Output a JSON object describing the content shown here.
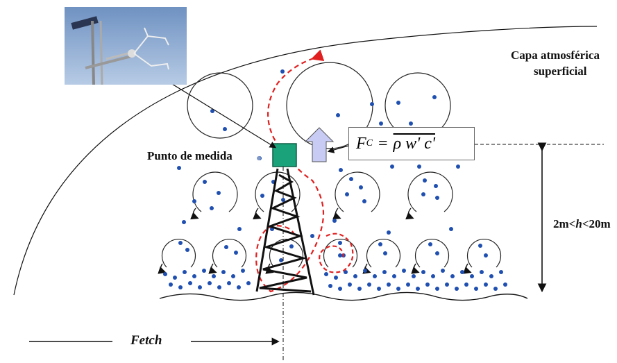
{
  "labels": {
    "layer_line1": "Capa atmosférica",
    "layer_line2": "superficial",
    "measure_point": "Punto de medida",
    "height_range": "2m<h<20m",
    "height_prefix": "2m<",
    "height_var": "h",
    "height_suffix": "<20m",
    "fetch": "Fetch"
  },
  "formula": {
    "lhs": "F",
    "lhs_sub": "C",
    "equals": "=",
    "rhs": "ρ w' c'"
  },
  "photo": {
    "description_icon": "anemometer-photo",
    "sky_color": "#8fb0d6"
  },
  "colors": {
    "particle": "#1f4fb0",
    "path": "#e02020",
    "sensor": "#1aa37a",
    "flux_arrow": "#c8ccf4",
    "line": "#111111"
  }
}
